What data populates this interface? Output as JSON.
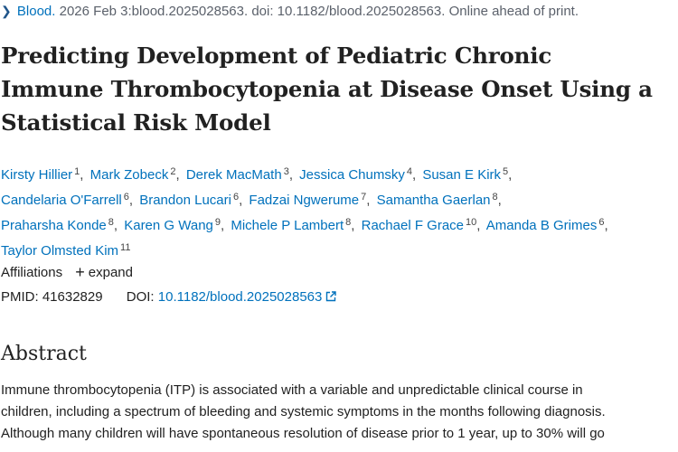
{
  "citation": {
    "journal": "Blood.",
    "details": "2026 Feb 3:blood.2025028563. doi: 10.1182/blood.2025028563. Online ahead of print."
  },
  "title": {
    "line1": "Predicting Development of Pediatric Chronic",
    "line2": "Immune Thrombocytopenia at Disease Onset Using a",
    "line3": "Statistical Risk Model"
  },
  "authors": [
    {
      "name": "Kirsty Hillier",
      "aff": "1"
    },
    {
      "name": "Mark Zobeck",
      "aff": "2"
    },
    {
      "name": "Derek MacMath",
      "aff": "3"
    },
    {
      "name": "Jessica Chumsky",
      "aff": "4"
    },
    {
      "name": "Susan E Kirk",
      "aff": "5"
    },
    {
      "name": "Candelaria O'Farrell",
      "aff": "6"
    },
    {
      "name": "Brandon Lucari",
      "aff": "6"
    },
    {
      "name": "Fadzai Ngwerume",
      "aff": "7"
    },
    {
      "name": "Samantha Gaerlan",
      "aff": "8"
    },
    {
      "name": "Praharsha Konde",
      "aff": "8"
    },
    {
      "name": "Karen G Wang",
      "aff": "9"
    },
    {
      "name": "Michele P Lambert",
      "aff": "8"
    },
    {
      "name": "Rachael F Grace",
      "aff": "10"
    },
    {
      "name": "Amanda B Grimes",
      "aff": "6"
    },
    {
      "name": "Taylor Olmsted Kim",
      "aff": "11"
    }
  ],
  "affiliations": {
    "label": "Affiliations",
    "expand": "expand"
  },
  "ids": {
    "pmid_label": "PMID:",
    "pmid": "41632829",
    "doi_label": "DOI:",
    "doi": "10.1182/blood.2025028563"
  },
  "abstract": {
    "heading": "Abstract",
    "line1": "Immune thrombocytopenia (ITP) is associated with a variable and unpredictable clinical course in",
    "line2": "children, including a spectrum of bleeding and systemic symptoms in the months following diagnosis.",
    "line3": "Although many children will have spontaneous resolution of disease prior to 1 year, up to 30% will go"
  }
}
